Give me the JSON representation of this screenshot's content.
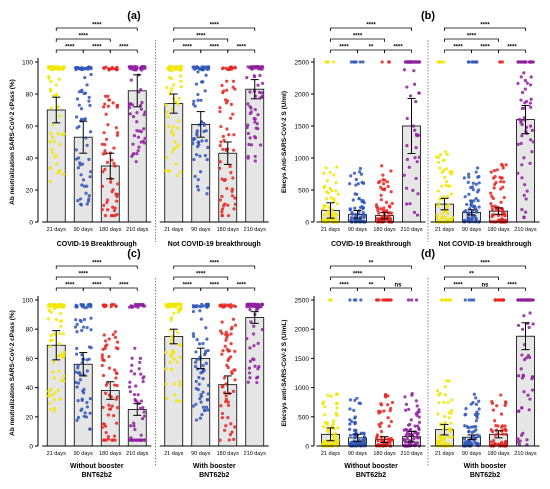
{
  "colors": {
    "d21": "#f2e600",
    "d90": "#2f55b8",
    "d180": "#e8231f",
    "d210": "#8e1f9e",
    "bar_fill": "#e6e6e6",
    "axis": "#000000"
  },
  "chart_data": [
    {
      "panel": "(a)",
      "type": "bar",
      "ylabel": "Ab neutralization SARS-CoV-2 cPass (%)",
      "ylim": [
        0,
        100
      ],
      "yticks": [
        "0",
        "20",
        "40",
        "60",
        "80",
        "100"
      ],
      "categories": [
        "21 days",
        "90 days",
        "180 days",
        "210 days"
      ],
      "groups": [
        {
          "label": "COVID-19 Breakthrough",
          "values": [
            70,
            53,
            35,
            82
          ],
          "errors": [
            8,
            10,
            8,
            10
          ]
        },
        {
          "label": "Not COVID-19 breakthrough",
          "values": [
            74,
            61,
            43,
            83
          ],
          "errors": [
            6,
            8,
            7,
            6
          ]
        }
      ],
      "significance": [
        {
          "group": 0,
          "from": 0,
          "to": 3,
          "text": "****"
        },
        {
          "group": 0,
          "from": 0,
          "to": 2,
          "text": "****"
        },
        {
          "group": 0,
          "from": 0,
          "to": 1,
          "text": "****"
        },
        {
          "group": 0,
          "from": 1,
          "to": 2,
          "text": "****"
        },
        {
          "group": 0,
          "from": 2,
          "to": 3,
          "text": "****"
        },
        {
          "group": 1,
          "from": 0,
          "to": 3,
          "text": "****"
        },
        {
          "group": 1,
          "from": 0,
          "to": 2,
          "text": "****"
        },
        {
          "group": 1,
          "from": 0,
          "to": 1,
          "text": "****"
        },
        {
          "group": 1,
          "from": 1,
          "to": 2,
          "text": "****"
        },
        {
          "group": 1,
          "from": 2,
          "to": 3,
          "text": "****"
        }
      ]
    },
    {
      "panel": "(b)",
      "type": "bar",
      "ylabel": "Elecys Anti-SARS-CoV-2 S (U/ml)",
      "ylim": [
        0,
        2500
      ],
      "yticks": [
        "0",
        "500",
        "1000",
        "1500",
        "2000",
        "2500"
      ],
      "categories": [
        "21 days",
        "90 days",
        "180 days",
        "210 days"
      ],
      "groups": [
        {
          "label": "COVID-19 Breakthrough",
          "values": [
            180,
            120,
            100,
            1500
          ],
          "errors": [
            120,
            60,
            50,
            430
          ]
        },
        {
          "label": "Not COVID-19 breakthrough",
          "values": [
            280,
            150,
            170,
            1600
          ],
          "errors": [
            90,
            40,
            50,
            220
          ]
        }
      ],
      "significance": [
        {
          "group": 0,
          "from": 0,
          "to": 3,
          "text": "****"
        },
        {
          "group": 0,
          "from": 0,
          "to": 2,
          "text": "****"
        },
        {
          "group": 0,
          "from": 0,
          "to": 1,
          "text": "****"
        },
        {
          "group": 0,
          "from": 1,
          "to": 2,
          "text": "**"
        },
        {
          "group": 0,
          "from": 2,
          "to": 3,
          "text": "****"
        },
        {
          "group": 1,
          "from": 0,
          "to": 3,
          "text": "****"
        },
        {
          "group": 1,
          "from": 0,
          "to": 2,
          "text": "****"
        },
        {
          "group": 1,
          "from": 0,
          "to": 1,
          "text": "****"
        },
        {
          "group": 1,
          "from": 1,
          "to": 2,
          "text": "****"
        },
        {
          "group": 1,
          "from": 2,
          "to": 3,
          "text": "****"
        }
      ]
    },
    {
      "panel": "(c)",
      "type": "bar",
      "ylabel": "Ab neutralization SARS-CoV-2 cPass (%)",
      "ylim": [
        0,
        100
      ],
      "yticks": [
        "0",
        "20",
        "40",
        "60",
        "80",
        "100"
      ],
      "categories": [
        "21 days",
        "90 days",
        "180 days",
        "210 days"
      ],
      "groups": [
        {
          "label": "Without booster BNT62b2",
          "values": [
            69,
            56,
            38,
            25
          ],
          "errors": [
            10,
            8,
            6,
            4
          ]
        },
        {
          "label": "With booster BNT62b2",
          "values": [
            75,
            60,
            42,
            88
          ],
          "errors": [
            5,
            7,
            6,
            4
          ]
        }
      ],
      "significance": [
        {
          "group": 0,
          "from": 0,
          "to": 3,
          "text": "****"
        },
        {
          "group": 0,
          "from": 0,
          "to": 2,
          "text": "****"
        },
        {
          "group": 0,
          "from": 0,
          "to": 1,
          "text": "****"
        },
        {
          "group": 0,
          "from": 1,
          "to": 2,
          "text": "****"
        },
        {
          "group": 0,
          "from": 2,
          "to": 3,
          "text": "****"
        },
        {
          "group": 1,
          "from": 0,
          "to": 3,
          "text": "****"
        },
        {
          "group": 1,
          "from": 0,
          "to": 2,
          "text": "****"
        },
        {
          "group": 1,
          "from": 0,
          "to": 1,
          "text": "****"
        },
        {
          "group": 1,
          "from": 1,
          "to": 2,
          "text": "****"
        },
        {
          "group": 1,
          "from": 2,
          "to": 3,
          "text": "****"
        }
      ]
    },
    {
      "panel": "(d)",
      "type": "bar",
      "ylabel": "Elecsys anti-SARS-CoV-2 S (U/mL)",
      "ylim": [
        0,
        2500
      ],
      "yticks": [
        "0",
        "500",
        "1000",
        "1500",
        "2000",
        "2500"
      ],
      "categories": [
        "21 days",
        "90 days",
        "180 days",
        "210 days"
      ],
      "groups": [
        {
          "label": "Without booster BNT62b2",
          "values": [
            200,
            140,
            110,
            160
          ],
          "errors": [
            110,
            60,
            50,
            90
          ]
        },
        {
          "label": "With booster BNT62b2",
          "values": [
            280,
            150,
            200,
            1880
          ],
          "errors": [
            90,
            40,
            60,
            230
          ]
        }
      ],
      "significance": [
        {
          "group": 0,
          "from": 0,
          "to": 3,
          "text": "**"
        },
        {
          "group": 0,
          "from": 0,
          "to": 2,
          "text": "****"
        },
        {
          "group": 0,
          "from": 0,
          "to": 1,
          "text": "****"
        },
        {
          "group": 0,
          "from": 1,
          "to": 2,
          "text": "**"
        },
        {
          "group": 0,
          "from": 2,
          "to": 3,
          "text": "ns"
        },
        {
          "group": 1,
          "from": 0,
          "to": 3,
          "text": "****"
        },
        {
          "group": 1,
          "from": 0,
          "to": 2,
          "text": "**"
        },
        {
          "group": 1,
          "from": 0,
          "to": 1,
          "text": "****"
        },
        {
          "group": 1,
          "from": 1,
          "to": 2,
          "text": "ns"
        },
        {
          "group": 1,
          "from": 2,
          "to": 3,
          "text": "****"
        }
      ]
    }
  ]
}
